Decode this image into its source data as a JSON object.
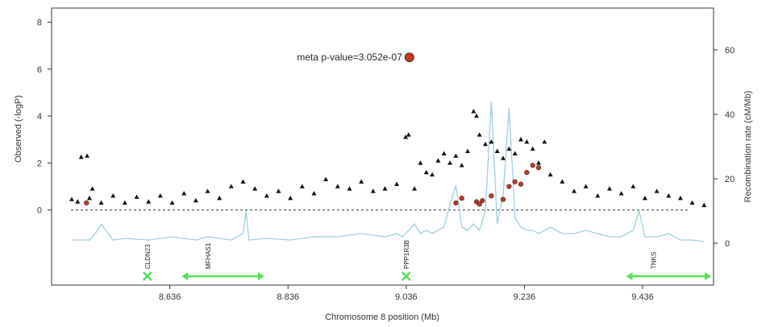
{
  "chart_data": {
    "type": "scatter",
    "title": "",
    "xlabel": "Chromosome 8 position (Mb)",
    "ylabel": "Observed (-logP)",
    "y2label": "Recombination rate (cM/Mb)",
    "xlim": [
      8.436,
      9.556
    ],
    "xticks": [
      8.636,
      8.836,
      9.036,
      9.236,
      9.436
    ],
    "ylim": [
      -3.2,
      8.6
    ],
    "yticks": [
      0,
      2,
      4,
      6,
      8
    ],
    "y2lim": [
      -13,
      73
    ],
    "y2ticks": [
      0,
      20,
      40,
      60
    ],
    "grid": false,
    "colors": {
      "snp": "#111111",
      "highlight": "#c8371f",
      "recombination": "#9fcfe0",
      "gene": "#55e055"
    },
    "lead_snp": {
      "x": 9.036,
      "y": 6.5,
      "label": "meta p-value=3.052e-07"
    },
    "series": [
      {
        "marker": "triangle",
        "points": [
          [
            8.486,
            2.25
          ],
          [
            8.496,
            2.3
          ],
          [
            8.505,
            0.9
          ],
          [
            8.47,
            0.45
          ],
          [
            8.48,
            0.35
          ],
          [
            8.5,
            0.5
          ],
          [
            8.52,
            0.3
          ],
          [
            8.54,
            0.6
          ],
          [
            8.56,
            0.3
          ],
          [
            8.58,
            0.55
          ],
          [
            8.6,
            0.35
          ],
          [
            8.62,
            0.6
          ],
          [
            8.64,
            0.3
          ],
          [
            8.66,
            0.7
          ],
          [
            8.68,
            0.4
          ],
          [
            8.7,
            0.8
          ],
          [
            8.72,
            0.5
          ],
          [
            8.74,
            1.0
          ],
          [
            8.76,
            1.2
          ],
          [
            8.78,
            0.9
          ],
          [
            8.8,
            0.6
          ],
          [
            8.82,
            0.8
          ],
          [
            8.84,
            0.5
          ],
          [
            8.86,
            1.0
          ],
          [
            8.88,
            0.7
          ],
          [
            8.9,
            1.3
          ],
          [
            8.92,
            1.0
          ],
          [
            8.94,
            0.9
          ],
          [
            8.96,
            1.2
          ],
          [
            8.98,
            0.8
          ],
          [
            9.0,
            0.9
          ],
          [
            9.02,
            1.1
          ],
          [
            9.035,
            3.1
          ],
          [
            9.04,
            3.2
          ],
          [
            9.05,
            0.9
          ],
          [
            9.06,
            2.0
          ],
          [
            9.07,
            1.6
          ],
          [
            9.08,
            1.5
          ],
          [
            9.09,
            2.1
          ],
          [
            9.1,
            2.4
          ],
          [
            9.11,
            2.0
          ],
          [
            9.12,
            2.3
          ],
          [
            9.13,
            1.9
          ],
          [
            9.14,
            2.5
          ],
          [
            9.15,
            4.2
          ],
          [
            9.155,
            4.0
          ],
          [
            9.16,
            3.2
          ],
          [
            9.17,
            2.8
          ],
          [
            9.18,
            2.9
          ],
          [
            9.19,
            2.5
          ],
          [
            9.2,
            2.2
          ],
          [
            9.21,
            2.6
          ],
          [
            9.22,
            2.4
          ],
          [
            9.23,
            3.0
          ],
          [
            9.24,
            2.9
          ],
          [
            9.25,
            2.6
          ],
          [
            9.26,
            2.0
          ],
          [
            9.27,
            2.9
          ],
          [
            9.28,
            1.5
          ],
          [
            9.3,
            1.2
          ],
          [
            9.32,
            0.8
          ],
          [
            9.34,
            1.0
          ],
          [
            9.36,
            0.6
          ],
          [
            9.38,
            0.9
          ],
          [
            9.4,
            0.7
          ],
          [
            9.42,
            1.0
          ],
          [
            9.44,
            0.5
          ],
          [
            9.46,
            0.8
          ],
          [
            9.48,
            0.6
          ],
          [
            9.5,
            0.5
          ],
          [
            9.52,
            0.3
          ],
          [
            9.54,
            0.2
          ]
        ]
      },
      {
        "marker": "circle",
        "points": [
          [
            8.495,
            0.3
          ],
          [
            9.155,
            0.35
          ],
          [
            9.16,
            0.25
          ],
          [
            9.165,
            0.4
          ],
          [
            9.18,
            0.6
          ],
          [
            9.2,
            0.45
          ],
          [
            9.21,
            1.0
          ],
          [
            9.22,
            1.2
          ],
          [
            9.23,
            1.1
          ],
          [
            9.24,
            1.6
          ],
          [
            9.25,
            1.9
          ],
          [
            9.26,
            1.8
          ],
          [
            9.12,
            0.3
          ],
          [
            9.13,
            0.5
          ]
        ]
      }
    ],
    "recombination": {
      "x": [
        8.47,
        8.5,
        8.51,
        8.52,
        8.54,
        8.56,
        8.6,
        8.64,
        8.68,
        8.7,
        8.74,
        8.76,
        8.765,
        8.77,
        8.8,
        8.84,
        8.88,
        8.92,
        8.96,
        9.0,
        9.02,
        9.03,
        9.05,
        9.06,
        9.07,
        9.08,
        9.1,
        9.11,
        9.12,
        9.13,
        9.14,
        9.15,
        9.16,
        9.17,
        9.18,
        9.19,
        9.2,
        9.21,
        9.22,
        9.23,
        9.24,
        9.25,
        9.26,
        9.28,
        9.3,
        9.32,
        9.34,
        9.36,
        9.38,
        9.4,
        9.42,
        9.43,
        9.44,
        9.46,
        9.48,
        9.5,
        9.52,
        9.54
      ],
      "y": [
        1,
        1,
        3,
        6,
        1,
        1.5,
        1,
        2,
        1,
        2,
        1,
        3,
        10,
        1,
        1.5,
        1,
        2,
        2,
        3,
        2,
        3,
        2,
        6,
        3,
        4,
        3,
        5,
        12,
        18,
        5,
        4,
        6,
        4,
        10,
        44,
        6,
        15,
        42,
        8,
        5,
        4,
        4,
        3,
        5,
        3,
        3,
        4,
        3,
        2,
        2,
        4,
        10,
        2,
        2,
        3,
        1,
        1,
        0.5
      ]
    },
    "genes": [
      {
        "name": "CLDN23",
        "start": 8.593,
        "end": 8.603
      },
      {
        "name": "MFHAS1",
        "start": 8.656,
        "end": 8.796
      },
      {
        "name": "PPP1R3B",
        "start": 9.032,
        "end": 9.04
      },
      {
        "name": "TNKS",
        "start": 9.408,
        "end": 9.552
      }
    ]
  }
}
